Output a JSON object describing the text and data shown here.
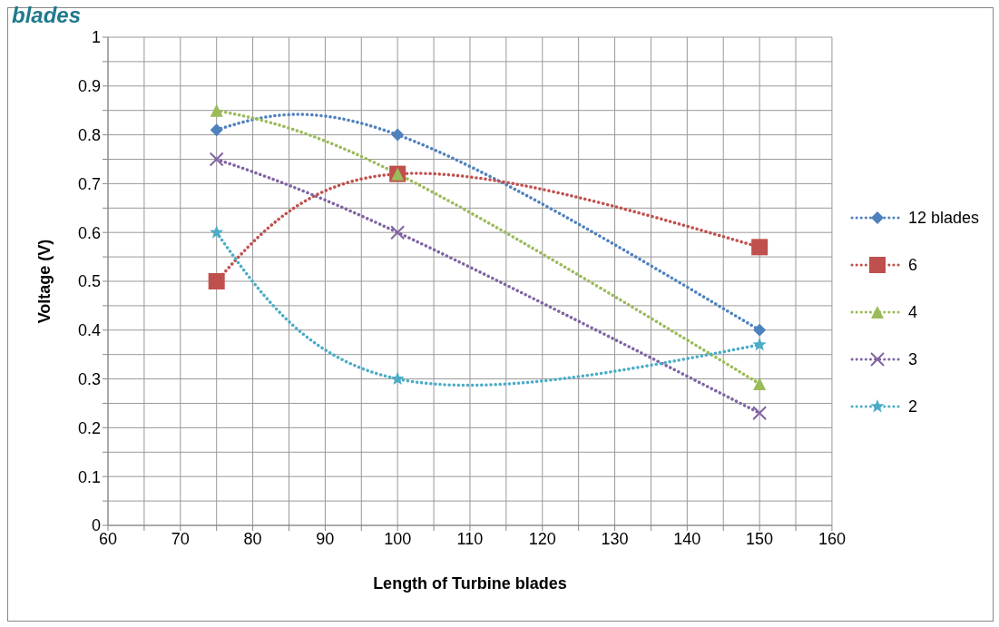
{
  "chart_data": {
    "type": "line",
    "title": "blades",
    "xlabel": "Length of Turbine blades",
    "ylabel": "Voltage (V)",
    "x": [
      75,
      100,
      150
    ],
    "series": [
      {
        "name": "12 blades",
        "color": "#4f81bd",
        "values": [
          0.81,
          0.8,
          0.4
        ],
        "marker": "diamond"
      },
      {
        "name": "6",
        "color": "#c0504d",
        "values": [
          0.5,
          0.72,
          0.57
        ],
        "marker": "square"
      },
      {
        "name": "4",
        "color": "#9bbb59",
        "values": [
          0.85,
          0.72,
          0.29
        ],
        "marker": "triangle"
      },
      {
        "name": "3",
        "color": "#8064a2",
        "values": [
          0.75,
          0.6,
          0.23
        ],
        "marker": "cross"
      },
      {
        "name": "2",
        "color": "#4bacc6",
        "values": [
          0.6,
          0.3,
          0.37
        ],
        "marker": "star"
      }
    ],
    "xlim": [
      60,
      160
    ],
    "xticks": [
      60,
      {
        "value": 65,
        "label": null
      },
      70,
      {
        "value": 75,
        "label": null
      },
      80,
      {
        "value": 85,
        "label": null
      },
      90,
      {
        "value": 95,
        "label": null
      },
      100,
      {
        "value": 105,
        "label": null
      },
      110,
      {
        "value": 115,
        "label": null
      },
      120,
      {
        "value": 125,
        "label": null
      },
      130,
      {
        "value": 135,
        "label": null
      },
      140,
      {
        "value": 145,
        "label": null
      },
      150,
      {
        "value": 155,
        "label": null
      },
      160
    ],
    "ylim": [
      0,
      1
    ],
    "yticks": [
      0,
      {
        "value": 0.05,
        "label": null
      },
      0.1,
      {
        "value": 0.15,
        "label": null
      },
      0.2,
      {
        "value": 0.25,
        "label": null
      },
      0.3,
      {
        "value": 0.35,
        "label": null
      },
      0.4,
      {
        "value": 0.45,
        "label": null
      },
      0.5,
      {
        "value": 0.55,
        "label": null
      },
      0.6,
      {
        "value": 0.65,
        "label": null
      },
      0.7,
      {
        "value": 0.75,
        "label": null
      },
      0.8,
      {
        "value": 0.85,
        "label": null
      },
      0.9,
      {
        "value": 0.95,
        "label": null
      },
      1
    ],
    "grid": true,
    "legend": "right",
    "line_style": "dotted"
  }
}
